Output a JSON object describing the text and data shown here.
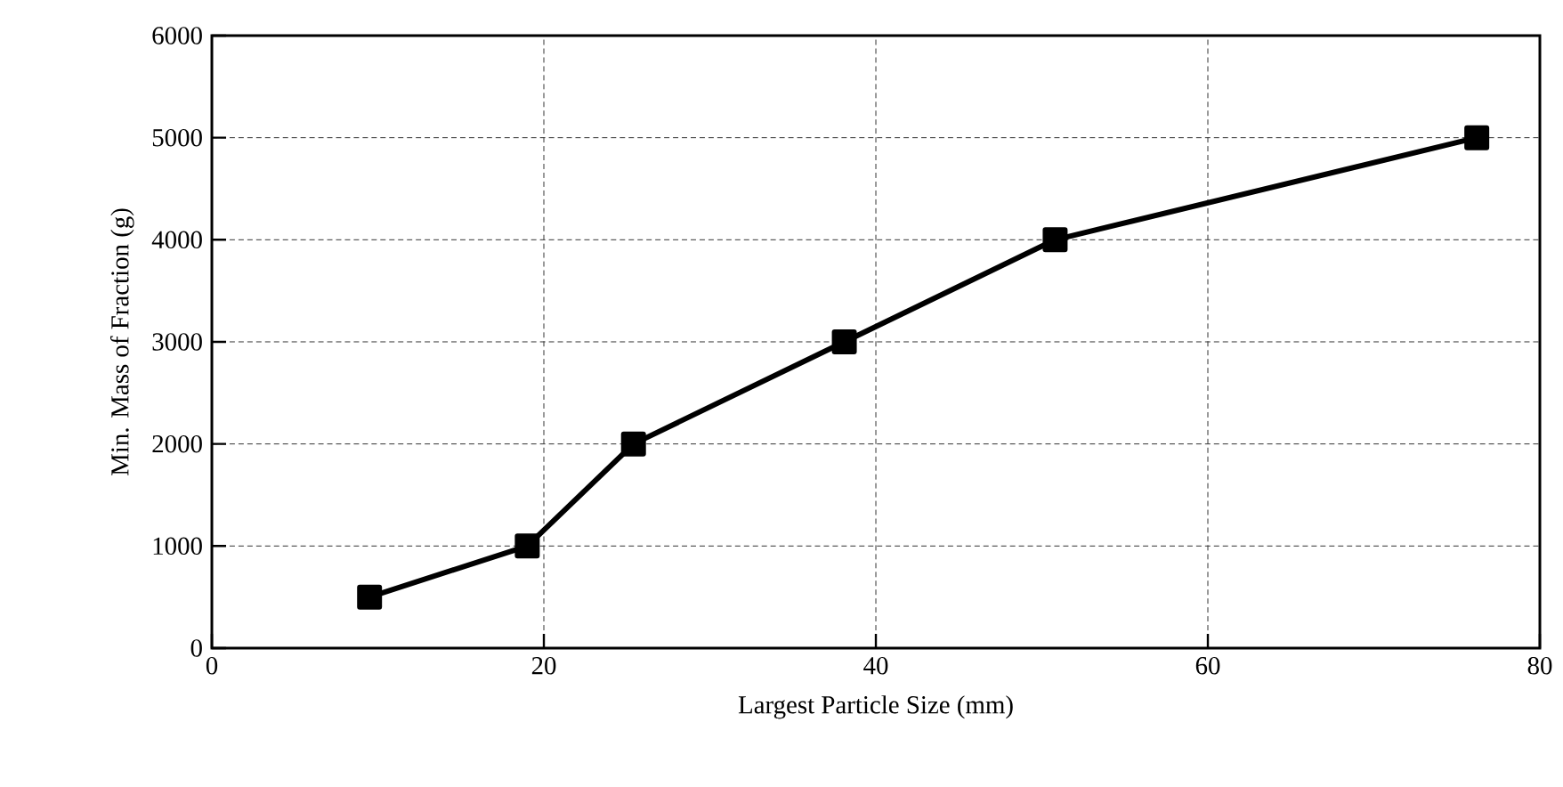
{
  "chart_data": {
    "type": "line",
    "xlabel": "Largest Particle Size (mm)",
    "ylabel": "Min. Mass of Fraction (g)",
    "x": [
      9.5,
      19,
      25.4,
      38.1,
      50.8,
      76.2
    ],
    "series": [
      {
        "color": "#000000",
        "values": [
          500,
          1000,
          2000,
          3000,
          4000,
          5000
        ]
      }
    ],
    "xlim": [
      0,
      80
    ],
    "xticks": [
      0,
      20,
      40,
      60,
      80
    ],
    "ylim": [
      0,
      6000
    ],
    "yticks": [
      0,
      1000,
      2000,
      3000,
      4000,
      5000,
      6000
    ],
    "grid": true,
    "marker": "square",
    "line_style": "solid"
  }
}
